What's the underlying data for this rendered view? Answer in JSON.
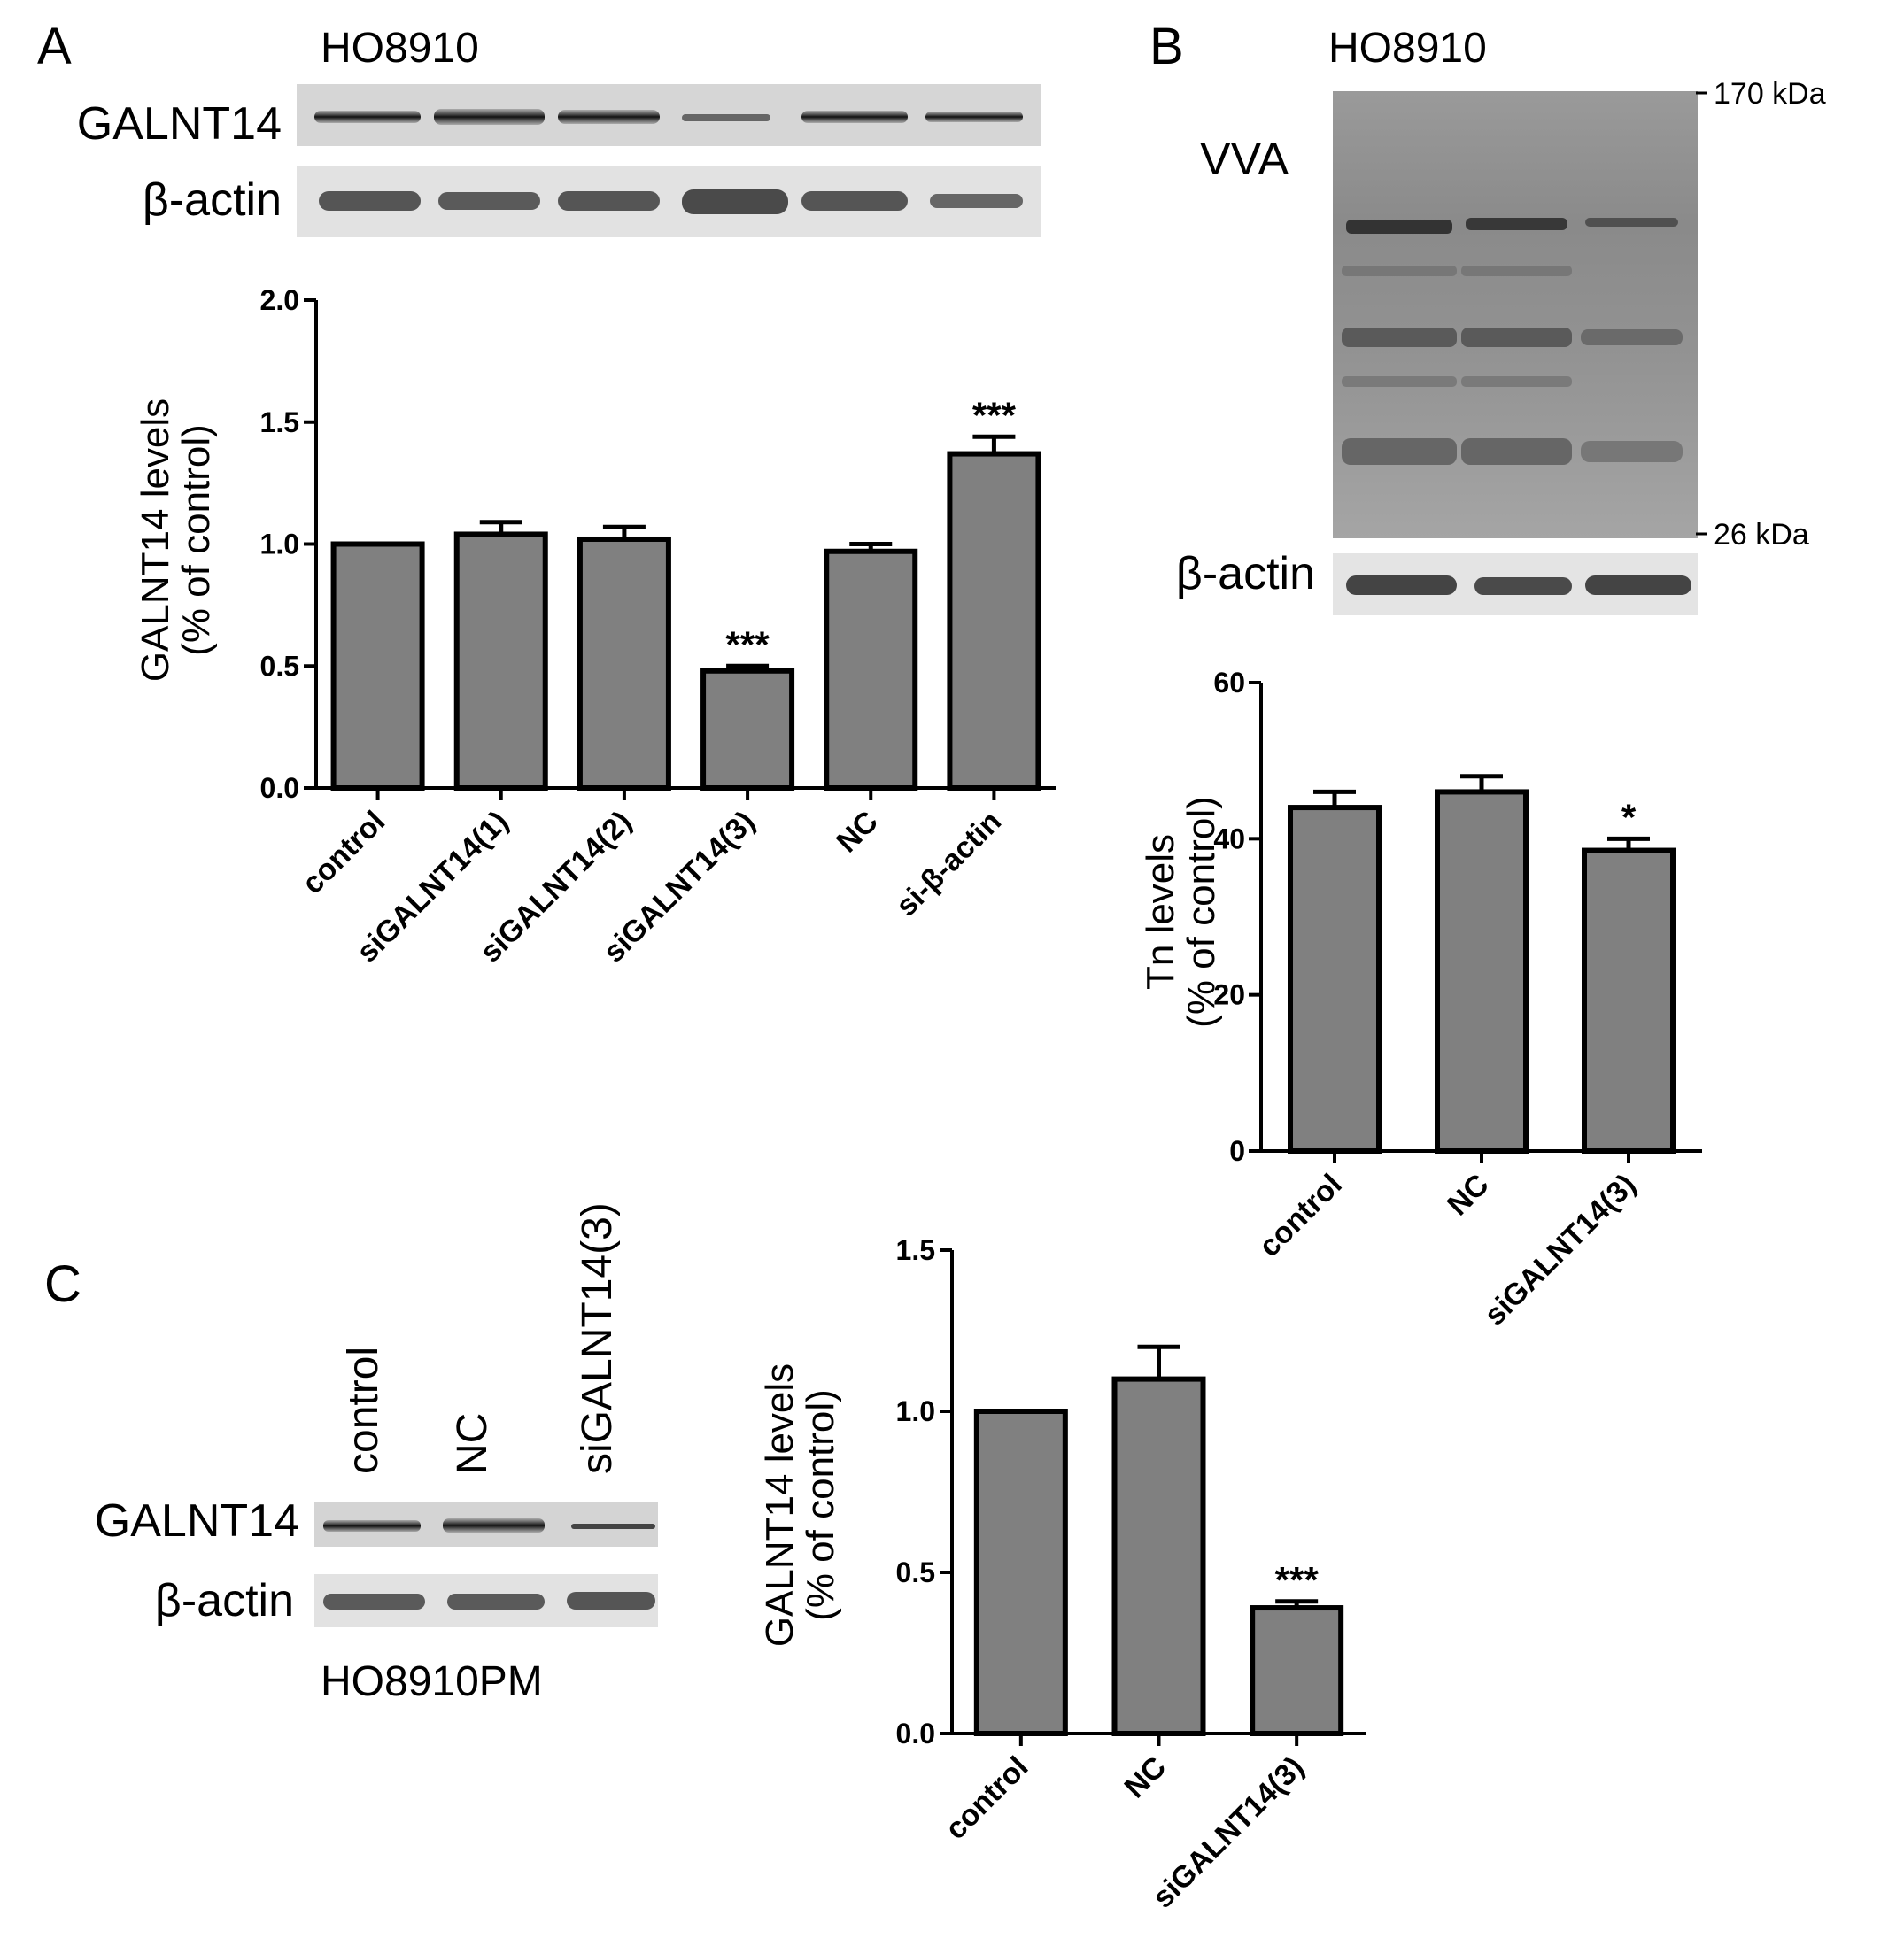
{
  "panels": {
    "a": {
      "letter": "A",
      "cell_line": "HO8910",
      "blot_labels": [
        "GALNT14",
        "β-actin"
      ]
    },
    "b": {
      "letter": "B",
      "cell_line": "HO8910",
      "blot_labels": [
        "VVA",
        "β-actin"
      ],
      "markers": [
        "170 kDa",
        "26 kDa"
      ]
    },
    "c": {
      "letter": "C",
      "cell_line": "HO8910PM",
      "blot_labels": [
        "GALNT14",
        "β-actin"
      ],
      "lanes": [
        "control",
        "NC",
        "siGALNT14(3)"
      ]
    }
  },
  "colors": {
    "bar_fill": "#808080",
    "bar_stroke": "#000000"
  },
  "chart_data": [
    {
      "id": "a",
      "type": "bar",
      "categories": [
        "control",
        "siGALNT14(1)",
        "siGALNT14(2)",
        "siGALNT14(3)",
        "NC",
        "si-β-actin"
      ],
      "values": [
        1.0,
        1.04,
        1.02,
        0.48,
        0.97,
        1.37
      ],
      "errors": [
        0,
        0.05,
        0.05,
        0.02,
        0.03,
        0.07
      ],
      "significance": [
        "",
        "",
        "",
        "***",
        "",
        "***"
      ],
      "ylabel_lines": [
        "GALNT14 levels",
        "(% of control)"
      ],
      "ylim": [
        0,
        2.0
      ],
      "yticks": [
        "0.0",
        "0.5",
        "1.0",
        "1.5",
        "2.0"
      ],
      "ytick_values": [
        0,
        0.5,
        1.0,
        1.5,
        2.0
      ]
    },
    {
      "id": "b",
      "type": "bar",
      "categories": [
        "control",
        "NC",
        "siGALNT14(3)"
      ],
      "values": [
        44,
        46,
        38.5
      ],
      "errors": [
        2,
        2,
        1.5
      ],
      "significance": [
        "",
        "",
        "*"
      ],
      "ylabel_lines": [
        "Tn levels",
        "(% of control)"
      ],
      "ylim": [
        0,
        60
      ],
      "yticks": [
        "0",
        "20",
        "40",
        "60"
      ],
      "ytick_values": [
        0,
        20,
        40,
        60
      ]
    },
    {
      "id": "c",
      "type": "bar",
      "categories": [
        "control",
        "NC",
        "siGALNT14(3)"
      ],
      "values": [
        1.0,
        1.1,
        0.39
      ],
      "errors": [
        0,
        0.1,
        0.02
      ],
      "significance": [
        "",
        "",
        "***"
      ],
      "ylabel_lines": [
        "GALNT14 levels",
        "(% of control)"
      ],
      "ylim": [
        0,
        1.5
      ],
      "yticks": [
        "0.0",
        "0.5",
        "1.0",
        "1.5"
      ],
      "ytick_values": [
        0,
        0.5,
        1.0,
        1.5
      ]
    }
  ]
}
